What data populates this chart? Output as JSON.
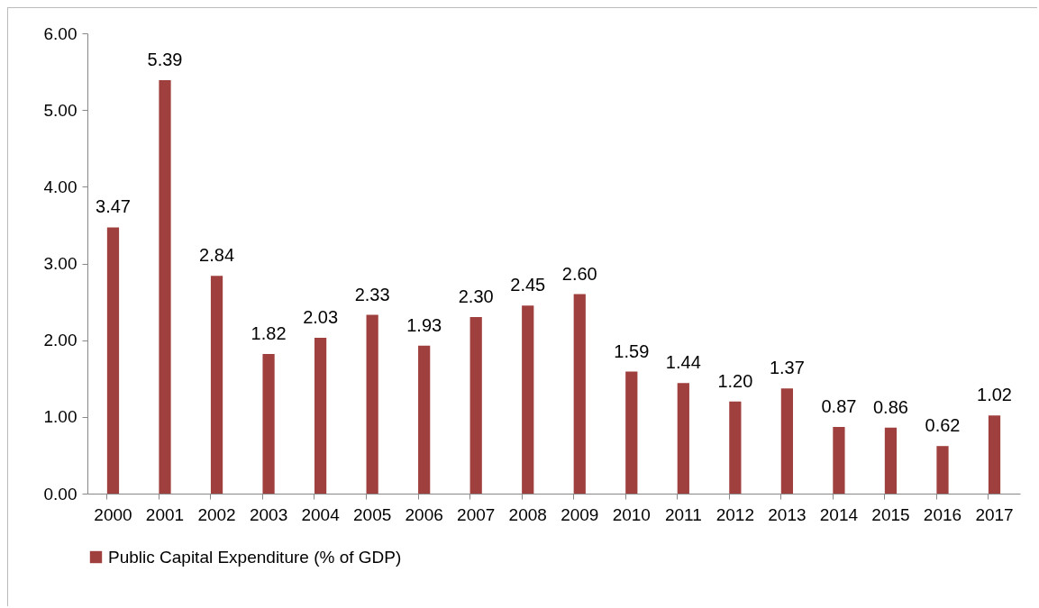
{
  "chart_data": {
    "type": "bar",
    "categories": [
      "2000",
      "2001",
      "2002",
      "2003",
      "2004",
      "2005",
      "2006",
      "2007",
      "2008",
      "2009",
      "2010",
      "2011",
      "2012",
      "2013",
      "2014",
      "2015",
      "2016",
      "2017"
    ],
    "series": [
      {
        "name": "Public Capital Expenditure (% of GDP)",
        "color": "#a0403e",
        "values": [
          3.47,
          5.39,
          2.84,
          1.82,
          2.03,
          2.33,
          1.93,
          2.3,
          2.45,
          2.6,
          1.59,
          1.44,
          1.2,
          1.37,
          0.87,
          0.86,
          0.62,
          1.02
        ],
        "value_labels": [
          "3.47",
          "5.39",
          "2.84",
          "1.82",
          "2.03",
          "2.33",
          "1.93",
          "2.30",
          "2.45",
          "2.60",
          "1.59",
          "1.44",
          "1.20",
          "1.37",
          "0.87",
          "0.86",
          "0.62",
          "1.02"
        ]
      }
    ],
    "ylim": [
      0,
      6
    ],
    "yticks": [
      {
        "value": 0,
        "label": "0.00"
      },
      {
        "value": 1,
        "label": "1.00"
      },
      {
        "value": 2,
        "label": "2.00"
      },
      {
        "value": 3,
        "label": "3.00"
      },
      {
        "value": 4,
        "label": "4.00"
      },
      {
        "value": 5,
        "label": "5.00"
      },
      {
        "value": 6,
        "label": "6.00"
      }
    ],
    "legend": "bottom",
    "grid": false
  }
}
